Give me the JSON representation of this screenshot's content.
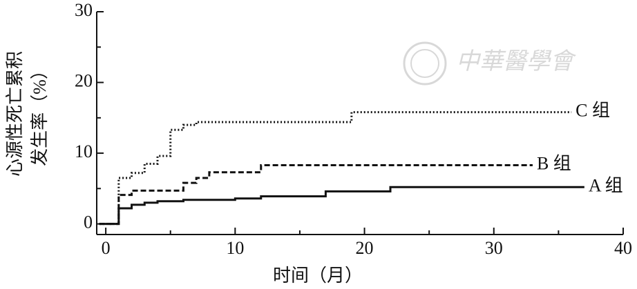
{
  "chart_data": {
    "type": "step",
    "xlabel": "时间（月）",
    "ylabel": [
      "心源性死亡累积",
      "发生率（%）"
    ],
    "watermark": "中華醫學會",
    "xlim": [
      -0.7,
      40
    ],
    "ylim": [
      -1.5,
      30
    ],
    "xticks": [
      0,
      10,
      20,
      30,
      40
    ],
    "yticks": [
      0,
      10,
      20,
      30
    ],
    "xminorticks": [
      5,
      15,
      25,
      35
    ],
    "yminorticks": [
      5,
      15,
      25
    ],
    "series": [
      {
        "name": "C 组",
        "color": "#111111",
        "dash": "dotted",
        "x": [
          -0.5,
          1,
          2,
          3,
          4,
          5,
          6,
          7,
          19,
          36
        ],
        "values": [
          0,
          6.5,
          7.2,
          8.5,
          9.6,
          13.3,
          14,
          14.4,
          15.8,
          15.8
        ]
      },
      {
        "name": "B 组",
        "color": "#111111",
        "dash": "dashed",
        "x": [
          -0.5,
          1,
          2,
          6,
          7,
          8,
          12,
          33
        ],
        "values": [
          0,
          4.1,
          4.7,
          5.8,
          6.5,
          7.3,
          8.3,
          8.3
        ]
      },
      {
        "name": "A 组",
        "color": "#111111",
        "dash": "solid",
        "x": [
          -0.5,
          1,
          2,
          3,
          4,
          6,
          10,
          12,
          17,
          22,
          37
        ],
        "values": [
          0,
          2.2,
          2.7,
          3.0,
          3.2,
          3.4,
          3.6,
          3.9,
          4.6,
          5.2,
          5.2
        ]
      }
    ]
  }
}
